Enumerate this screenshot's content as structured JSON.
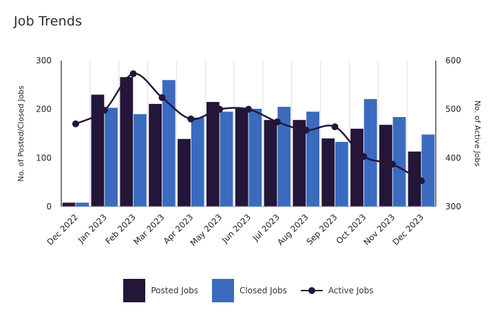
{
  "chart_data": {
    "type": "bar",
    "title": "Job Trends",
    "categories": [
      "Dec 2022",
      "Jan 2023",
      "Feb 2023",
      "Mar 2023",
      "Apr 2023",
      "May 2023",
      "Jun 2023",
      "Jul 2023",
      "Aug 2023",
      "Sep 2023",
      "Oct 2023",
      "Nov 2023",
      "Dec 2023"
    ],
    "series": [
      {
        "name": "Posted Jobs",
        "type": "bar",
        "color": "#241639",
        "axis": "left",
        "values": [
          8,
          230,
          266,
          211,
          139,
          215,
          201,
          178,
          178,
          140,
          160,
          168,
          113
        ]
      },
      {
        "name": "Closed Jobs",
        "type": "bar",
        "color": "#3a6bbf",
        "axis": "left",
        "values": [
          8,
          203,
          190,
          260,
          183,
          195,
          201,
          205,
          195,
          133,
          221,
          184,
          148
        ]
      },
      {
        "name": "Active Jobs",
        "type": "line",
        "color": "#241639",
        "axis": "right",
        "values": [
          470,
          498,
          573,
          524,
          480,
          500,
          500,
          474,
          457,
          464,
          403,
          387,
          353
        ]
      }
    ],
    "ylabel": "No. of Posted/Closed Jobs",
    "y2label": "No. of Active Jobs",
    "ylim": [
      0,
      300
    ],
    "y2lim": [
      300,
      600
    ],
    "yticks": [
      "0",
      "100",
      "200",
      "300"
    ],
    "y2ticks": [
      "300",
      "400",
      "500",
      "600"
    ],
    "grid": "vertical",
    "legend": "bottom"
  }
}
